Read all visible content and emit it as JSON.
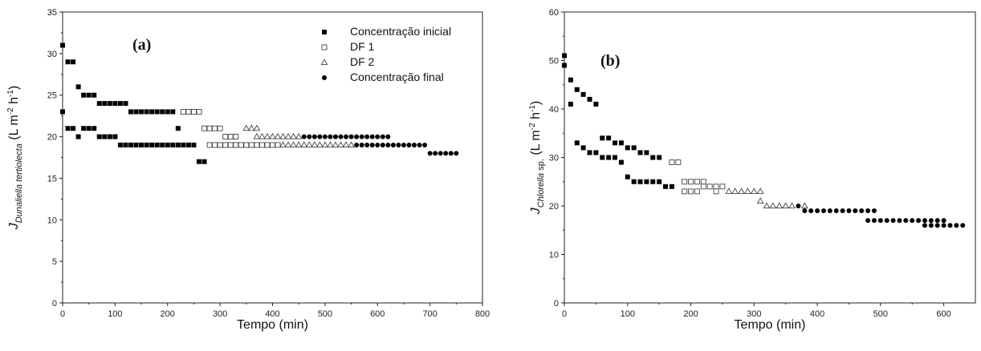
{
  "chart_data": [
    {
      "type": "scatter",
      "panel_label": "(a)",
      "xlabel": "Tempo (min)",
      "ylabel_main": "J",
      "ylabel_sub": "Dunaliella tertiolecta",
      "ylabel_unit": "(L m",
      "ylabel_unit_sup1": "-2",
      "ylabel_unit_mid": " h",
      "ylabel_unit_sup2": "-1",
      "ylabel_unit_end": ")",
      "xlim": [
        0,
        800
      ],
      "ylim": [
        0,
        35
      ],
      "xticks": [
        0,
        100,
        200,
        300,
        400,
        500,
        600,
        700,
        800
      ],
      "yticks": [
        0,
        5,
        10,
        15,
        20,
        25,
        30,
        35
      ],
      "legend_position": "top-right",
      "series": [
        {
          "name": "Concentração inicial",
          "marker": "square-filled",
          "points": [
            [
              0,
              31
            ],
            [
              0,
              23
            ],
            [
              10,
              29
            ],
            [
              20,
              29
            ],
            [
              10,
              21
            ],
            [
              20,
              21
            ],
            [
              30,
              26
            ],
            [
              30,
              20
            ],
            [
              40,
              25
            ],
            [
              50,
              25
            ],
            [
              60,
              25
            ],
            [
              40,
              21
            ],
            [
              50,
              21
            ],
            [
              60,
              21
            ],
            [
              70,
              24
            ],
            [
              80,
              24
            ],
            [
              90,
              24
            ],
            [
              100,
              24
            ],
            [
              110,
              24
            ],
            [
              120,
              24
            ],
            [
              70,
              20
            ],
            [
              80,
              20
            ],
            [
              90,
              20
            ],
            [
              100,
              20
            ],
            [
              110,
              19
            ],
            [
              120,
              19
            ],
            [
              130,
              19
            ],
            [
              140,
              19
            ],
            [
              150,
              19
            ],
            [
              160,
              19
            ],
            [
              170,
              19
            ],
            [
              180,
              19
            ],
            [
              190,
              19
            ],
            [
              200,
              19
            ],
            [
              210,
              19
            ],
            [
              220,
              19
            ],
            [
              230,
              19
            ],
            [
              240,
              19
            ],
            [
              250,
              19
            ],
            [
              130,
              23
            ],
            [
              140,
              23
            ],
            [
              150,
              23
            ],
            [
              160,
              23
            ],
            [
              170,
              23
            ],
            [
              180,
              23
            ],
            [
              190,
              23
            ],
            [
              200,
              23
            ],
            [
              210,
              23
            ],
            [
              220,
              21
            ],
            [
              260,
              17
            ],
            [
              270,
              17
            ]
          ]
        },
        {
          "name": "DF 1",
          "marker": "square-open",
          "points": [
            [
              230,
              23
            ],
            [
              240,
              23
            ],
            [
              250,
              23
            ],
            [
              260,
              23
            ],
            [
              270,
              21
            ],
            [
              280,
              21
            ],
            [
              290,
              21
            ],
            [
              300,
              21
            ],
            [
              280,
              19
            ],
            [
              290,
              19
            ],
            [
              300,
              19
            ],
            [
              310,
              19
            ],
            [
              320,
              19
            ],
            [
              330,
              19
            ],
            [
              340,
              19
            ],
            [
              350,
              19
            ],
            [
              360,
              19
            ],
            [
              370,
              19
            ],
            [
              380,
              19
            ],
            [
              390,
              19
            ],
            [
              400,
              19
            ],
            [
              410,
              19
            ],
            [
              310,
              20
            ],
            [
              320,
              20
            ],
            [
              330,
              20
            ]
          ]
        },
        {
          "name": "DF 2",
          "marker": "triangle-open",
          "points": [
            [
              350,
              21
            ],
            [
              360,
              21
            ],
            [
              370,
              21
            ],
            [
              370,
              20
            ],
            [
              380,
              20
            ],
            [
              390,
              20
            ],
            [
              400,
              20
            ],
            [
              410,
              20
            ],
            [
              420,
              20
            ],
            [
              430,
              20
            ],
            [
              440,
              20
            ],
            [
              450,
              20
            ],
            [
              420,
              19
            ],
            [
              430,
              19
            ],
            [
              440,
              19
            ],
            [
              450,
              19
            ],
            [
              460,
              19
            ],
            [
              470,
              19
            ],
            [
              480,
              19
            ],
            [
              490,
              19
            ],
            [
              500,
              19
            ],
            [
              510,
              19
            ],
            [
              520,
              19
            ],
            [
              530,
              19
            ],
            [
              540,
              19
            ],
            [
              550,
              19
            ]
          ]
        },
        {
          "name": "Concentração final",
          "marker": "circle-filled",
          "points": [
            [
              460,
              20
            ],
            [
              470,
              20
            ],
            [
              480,
              20
            ],
            [
              490,
              20
            ],
            [
              500,
              20
            ],
            [
              510,
              20
            ],
            [
              520,
              20
            ],
            [
              530,
              20
            ],
            [
              540,
              20
            ],
            [
              550,
              20
            ],
            [
              560,
              20
            ],
            [
              570,
              20
            ],
            [
              580,
              20
            ],
            [
              590,
              20
            ],
            [
              600,
              20
            ],
            [
              610,
              20
            ],
            [
              620,
              20
            ],
            [
              560,
              19
            ],
            [
              570,
              19
            ],
            [
              580,
              19
            ],
            [
              590,
              19
            ],
            [
              600,
              19
            ],
            [
              610,
              19
            ],
            [
              620,
              19
            ],
            [
              630,
              19
            ],
            [
              640,
              19
            ],
            [
              650,
              19
            ],
            [
              660,
              19
            ],
            [
              670,
              19
            ],
            [
              680,
              19
            ],
            [
              690,
              19
            ],
            [
              700,
              18
            ],
            [
              710,
              18
            ],
            [
              720,
              18
            ],
            [
              730,
              18
            ],
            [
              740,
              18
            ],
            [
              750,
              18
            ]
          ]
        }
      ]
    },
    {
      "type": "scatter",
      "panel_label": "(b)",
      "xlabel": "Tempo (min)",
      "ylabel_main": "J",
      "ylabel_sub": "Chlorella",
      "ylabel_sub2": " sp.",
      "ylabel_unit": "(L m",
      "ylabel_unit_sup1": "-2",
      "ylabel_unit_mid": " h",
      "ylabel_unit_sup2": "-1",
      "ylabel_unit_end": ")",
      "xlim": [
        0,
        650
      ],
      "ylim": [
        0,
        60
      ],
      "xticks": [
        0,
        100,
        200,
        300,
        400,
        500,
        600
      ],
      "yticks": [
        0,
        10,
        20,
        30,
        40,
        50,
        60
      ],
      "series": [
        {
          "name": "Concentração inicial",
          "marker": "square-filled",
          "points": [
            [
              0,
              51
            ],
            [
              0,
              49
            ],
            [
              10,
              46
            ],
            [
              10,
              41
            ],
            [
              20,
              44
            ],
            [
              30,
              43
            ],
            [
              40,
              42
            ],
            [
              50,
              41
            ],
            [
              20,
              33
            ],
            [
              30,
              32
            ],
            [
              40,
              31
            ],
            [
              50,
              31
            ],
            [
              60,
              34
            ],
            [
              70,
              34
            ],
            [
              60,
              30
            ],
            [
              70,
              30
            ],
            [
              80,
              33
            ],
            [
              90,
              33
            ],
            [
              80,
              30
            ],
            [
              90,
              29
            ],
            [
              100,
              32
            ],
            [
              110,
              32
            ],
            [
              120,
              31
            ],
            [
              130,
              31
            ],
            [
              140,
              30
            ],
            [
              150,
              30
            ],
            [
              100,
              26
            ],
            [
              110,
              25
            ],
            [
              120,
              25
            ],
            [
              130,
              25
            ],
            [
              140,
              25
            ],
            [
              150,
              25
            ],
            [
              160,
              24
            ],
            [
              170,
              24
            ]
          ]
        },
        {
          "name": "DF 1",
          "marker": "square-open",
          "points": [
            [
              170,
              29
            ],
            [
              180,
              29
            ],
            [
              190,
              25
            ],
            [
              200,
              25
            ],
            [
              210,
              25
            ],
            [
              220,
              25
            ],
            [
              190,
              23
            ],
            [
              200,
              23
            ],
            [
              210,
              23
            ],
            [
              230,
              24
            ],
            [
              240,
              24
            ],
            [
              250,
              24
            ],
            [
              220,
              24
            ],
            [
              240,
              23
            ]
          ]
        },
        {
          "name": "DF 2",
          "marker": "triangle-open",
          "points": [
            [
              260,
              23
            ],
            [
              270,
              23
            ],
            [
              280,
              23
            ],
            [
              290,
              23
            ],
            [
              300,
              23
            ],
            [
              310,
              23
            ],
            [
              310,
              21
            ],
            [
              320,
              20
            ],
            [
              330,
              20
            ],
            [
              340,
              20
            ],
            [
              350,
              20
            ],
            [
              360,
              20
            ],
            [
              380,
              20
            ]
          ]
        },
        {
          "name": "Concentração final",
          "marker": "circle-filled",
          "points": [
            [
              370,
              20
            ],
            [
              380,
              19
            ],
            [
              390,
              19
            ],
            [
              400,
              19
            ],
            [
              410,
              19
            ],
            [
              420,
              19
            ],
            [
              430,
              19
            ],
            [
              440,
              19
            ],
            [
              450,
              19
            ],
            [
              460,
              19
            ],
            [
              470,
              19
            ],
            [
              480,
              19
            ],
            [
              490,
              19
            ],
            [
              480,
              17
            ],
            [
              490,
              17
            ],
            [
              500,
              17
            ],
            [
              510,
              17
            ],
            [
              520,
              17
            ],
            [
              530,
              17
            ],
            [
              540,
              17
            ],
            [
              550,
              17
            ],
            [
              560,
              17
            ],
            [
              570,
              17
            ],
            [
              580,
              17
            ],
            [
              590,
              17
            ],
            [
              600,
              17
            ],
            [
              570,
              16
            ],
            [
              580,
              16
            ],
            [
              590,
              16
            ],
            [
              600,
              16
            ],
            [
              610,
              16
            ],
            [
              620,
              16
            ],
            [
              630,
              16
            ]
          ]
        }
      ]
    }
  ]
}
